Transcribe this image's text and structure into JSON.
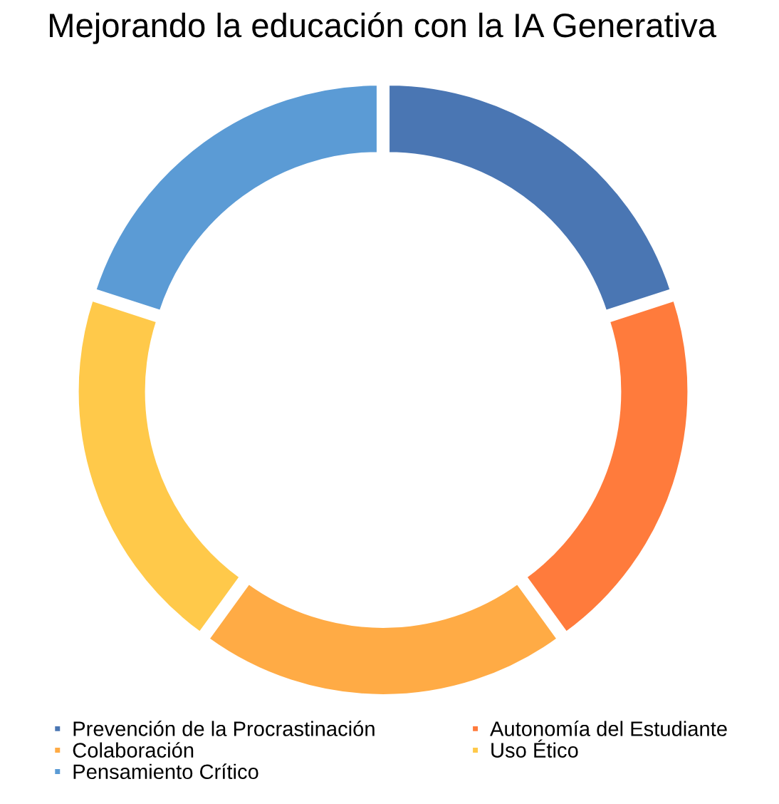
{
  "chart_data": {
    "type": "donut",
    "title": "Mejorando la educación con la IA Generativa",
    "categories": [
      "Prevención de la Procrastinación",
      "Autonomía del Estudiante",
      "Colaboración",
      "Uso Ético",
      "Pensamiento Crítico"
    ],
    "values": [
      20,
      20,
      20,
      20,
      20
    ],
    "colors": [
      "#4a76b3",
      "#ff7b3c",
      "#ffab45",
      "#ffc94a",
      "#5b9bd5"
    ],
    "legend": "bottom"
  }
}
